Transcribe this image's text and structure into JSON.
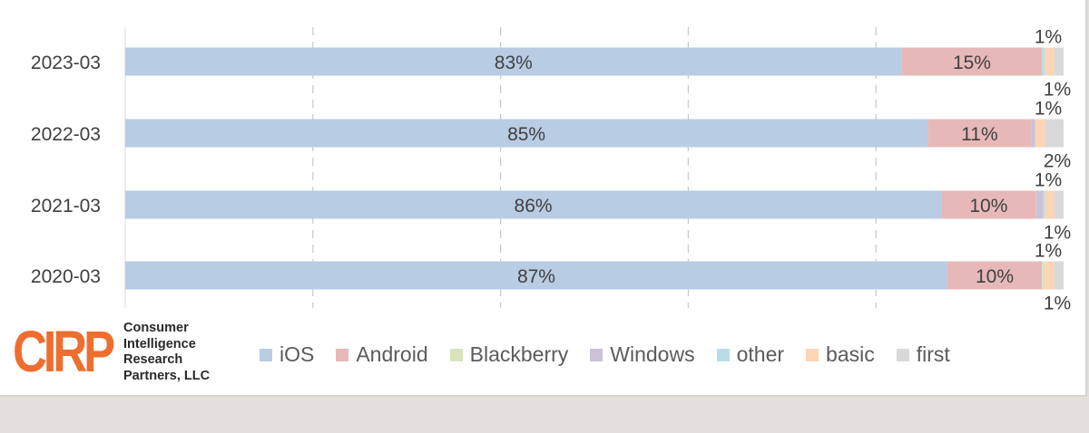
{
  "chart_data": {
    "type": "bar",
    "orientation": "horizontal",
    "stacked": true,
    "categories": [
      "2023-03",
      "2022-03",
      "2021-03",
      "2020-03"
    ],
    "series": [
      {
        "name": "iOS",
        "color": "#b8cce4",
        "values": [
          83,
          85,
          86,
          87
        ],
        "labels": [
          "83%",
          "85%",
          "86%",
          "87%"
        ]
      },
      {
        "name": "Android",
        "color": "#e6b9b8",
        "values": [
          15,
          11,
          10,
          10
        ],
        "labels": [
          "15%",
          "11%",
          "10%",
          "10%"
        ]
      },
      {
        "name": "Blackberry",
        "color": "#d7e4bd",
        "values": [
          0,
          0,
          0,
          0.3
        ],
        "labels": [
          "",
          "",
          "",
          ""
        ]
      },
      {
        "name": "Windows",
        "color": "#ccc1da",
        "values": [
          0,
          0.4,
          0.7,
          0
        ],
        "labels": [
          "",
          "",
          "",
          ""
        ]
      },
      {
        "name": "other",
        "color": "#b7dee8",
        "values": [
          0.3,
          0,
          0.2,
          0
        ],
        "labels": [
          "",
          "",
          "",
          ""
        ]
      },
      {
        "name": "basic",
        "color": "#fcd5b5",
        "values": [
          1,
          1,
          1,
          1
        ],
        "labels": [
          "1%",
          "1%",
          "1%",
          "1%"
        ]
      },
      {
        "name": "first",
        "color": "#d9d9d9",
        "values": [
          1,
          2,
          1,
          1
        ],
        "labels": [
          "1%",
          "2%",
          "1%",
          "1%"
        ]
      }
    ],
    "xlim": [
      0,
      100
    ],
    "grid": "vertical-dashed",
    "legend": "bottom"
  },
  "logo": {
    "mark": "CIRP",
    "text": [
      "Consumer",
      "Intelligence",
      "Research",
      "Partners, LLC"
    ]
  }
}
